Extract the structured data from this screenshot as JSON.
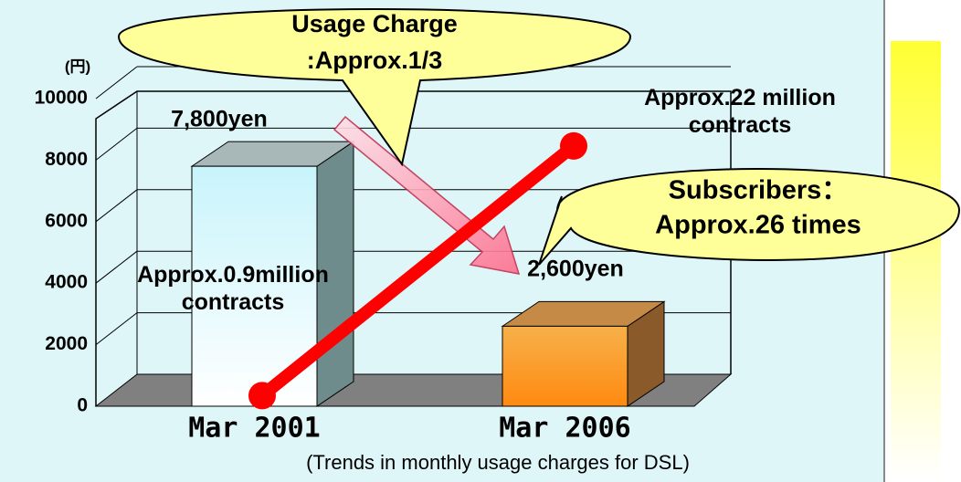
{
  "chart_data": {
    "type": "bar",
    "unit_label": "(円)",
    "categories": [
      "Mar 2001",
      "Mar 2006"
    ],
    "values": [
      7800,
      2600
    ],
    "value_labels": [
      "7,800yen",
      "2,600yen"
    ],
    "color": [
      "#d8f8fc",
      "#f79a2c"
    ],
    "ylim": [
      0,
      10000
    ],
    "yticks": [
      0,
      2000,
      4000,
      6000,
      8000,
      10000
    ],
    "grid": true,
    "line": {
      "values": [
        0.9,
        22
      ],
      "value_labels": [
        "Approx.0.9million contracts",
        "Approx.22 million contracts"
      ],
      "color": "#ff0000",
      "axis": "y2"
    },
    "y2lim": [
      0,
      26
    ],
    "callouts": [
      {
        "lines": [
          "Usage Charge",
          ":Approx.1/3"
        ]
      },
      {
        "lines": [
          "Subscribers：",
          "Approx.26 times"
        ]
      }
    ],
    "caption": "(Trends in monthly usage charges for DSL)"
  }
}
